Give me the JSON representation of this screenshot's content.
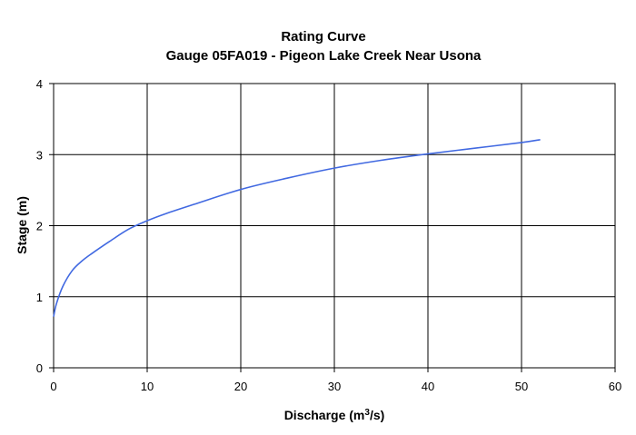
{
  "chart_data": {
    "type": "line",
    "title": "Rating Curve",
    "subtitle": "Gauge 05FA019 - Pigeon Lake Creek Near Usona",
    "xlabel": "Discharge (m",
    "xlabel_sup": "3",
    "xlabel_suffix": "/s)",
    "ylabel": "Stage (m)",
    "xlim": [
      0,
      60
    ],
    "ylim": [
      0,
      4
    ],
    "xticks": [
      "0",
      "10",
      "20",
      "30",
      "40",
      "50",
      "60"
    ],
    "yticks": [
      "0",
      "1",
      "2",
      "3",
      "4"
    ],
    "grid": true,
    "legend": "none",
    "line_color": "#4169e1",
    "series": [
      {
        "x": [
          0,
          0.3,
          1,
          2,
          3,
          4,
          6,
          8,
          10,
          12,
          15,
          20,
          25,
          30,
          35,
          40,
          45,
          50,
          52
        ],
        "y": [
          0.72,
          0.9,
          1.15,
          1.37,
          1.5,
          1.6,
          1.78,
          1.95,
          2.07,
          2.17,
          2.3,
          2.51,
          2.67,
          2.81,
          2.92,
          3.01,
          3.09,
          3.17,
          3.21
        ]
      }
    ]
  }
}
